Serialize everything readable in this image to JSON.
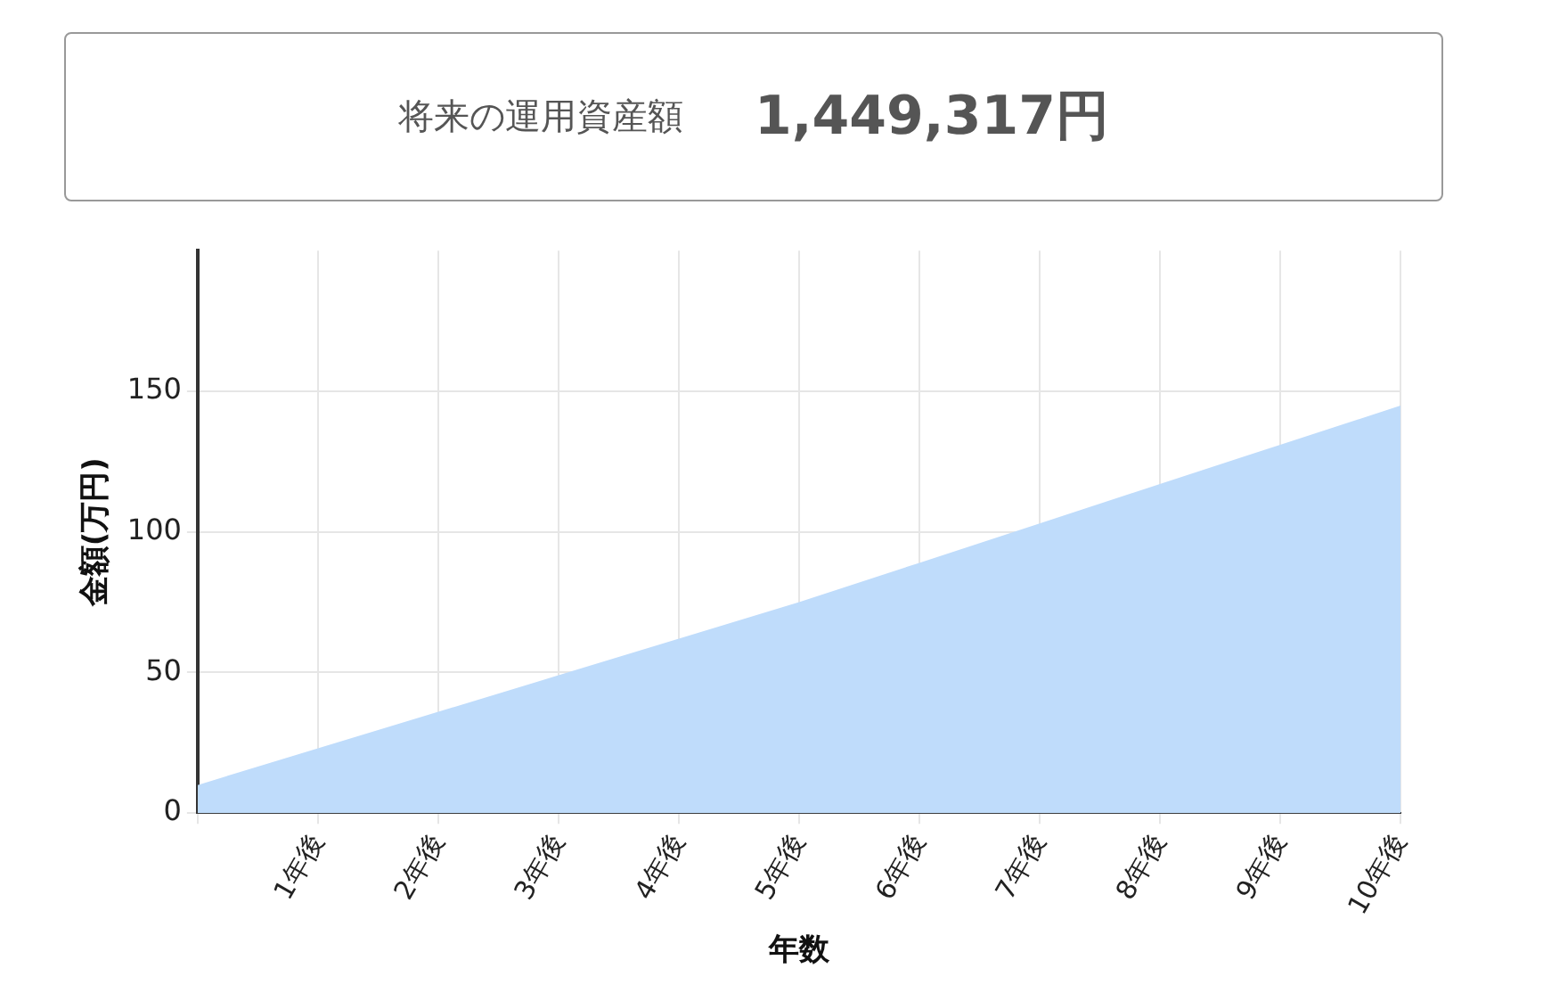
{
  "chart_data": {
    "type": "area",
    "title": "将来の運用資産額",
    "subtitle": "1,449,317円",
    "xlabel": "年数",
    "ylabel": "金額(万円)",
    "categories": [
      null,
      "1年後",
      "2年後",
      "3年後",
      "4年後",
      "5年後",
      "6年後",
      "7年後",
      "8年後",
      "9年後",
      "10年後"
    ],
    "series": [
      {
        "color": "#bfdcfb",
        "values": [
          10,
          23,
          36,
          49,
          62,
          75,
          89,
          103,
          117,
          131,
          144.9
        ]
      }
    ],
    "ylim": [
      0,
      200
    ],
    "yticks": [
      0,
      50,
      100,
      150
    ],
    "grid": true,
    "legend": false
  }
}
